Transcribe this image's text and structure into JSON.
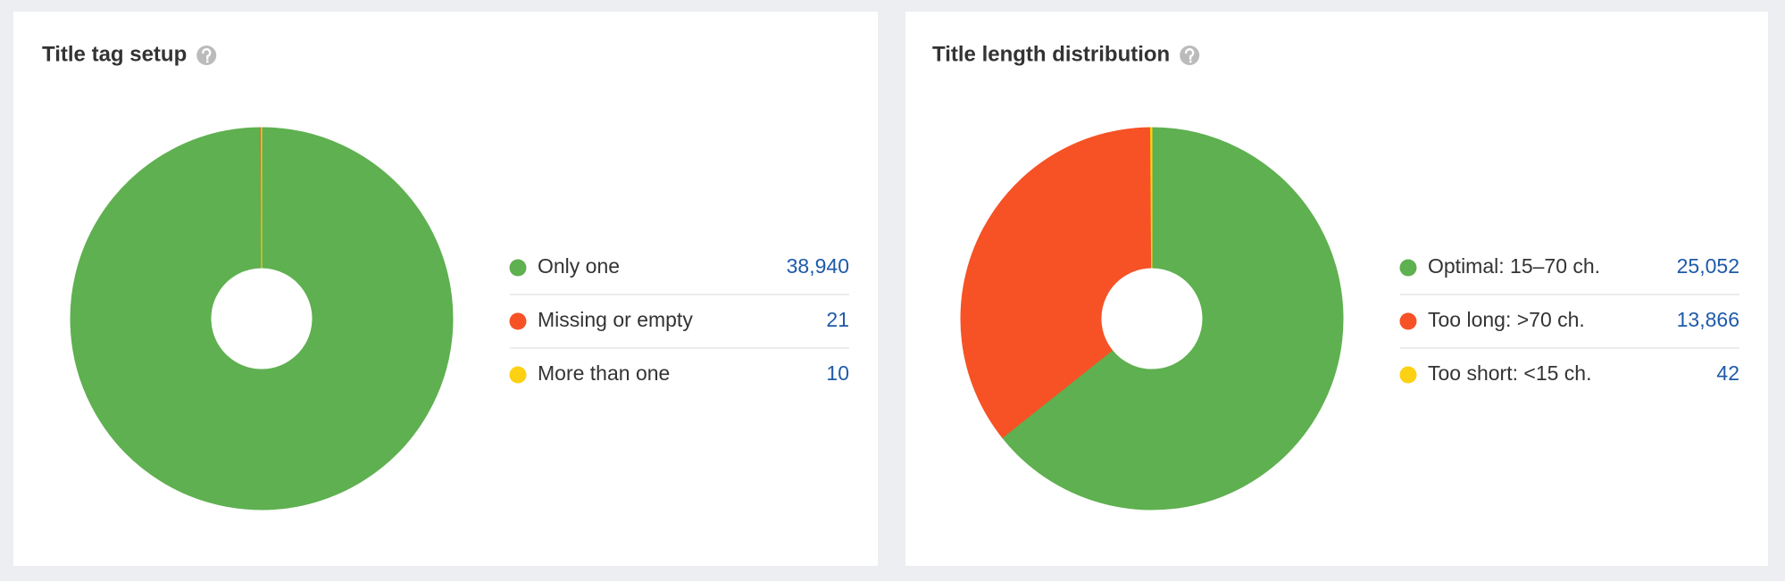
{
  "chart_data": [
    {
      "type": "pie",
      "title": "Title tag setup",
      "categories": [
        "Only one",
        "Missing or empty",
        "More than one"
      ],
      "values": [
        38940,
        21,
        10
      ],
      "value_labels": [
        "38,940",
        "21",
        "10"
      ],
      "colors": [
        "#5fb050",
        "#f65226",
        "#fcd113"
      ]
    },
    {
      "type": "pie",
      "title": "Title length distribution",
      "categories": [
        "Optimal: 15–70 ch.",
        "Too long: >70 ch.",
        "Too short: <15 ch."
      ],
      "values": [
        25052,
        13866,
        42
      ],
      "value_labels": [
        "25,052",
        "13,866",
        "42"
      ],
      "colors": [
        "#5fb050",
        "#f65226",
        "#fcd113"
      ]
    }
  ]
}
